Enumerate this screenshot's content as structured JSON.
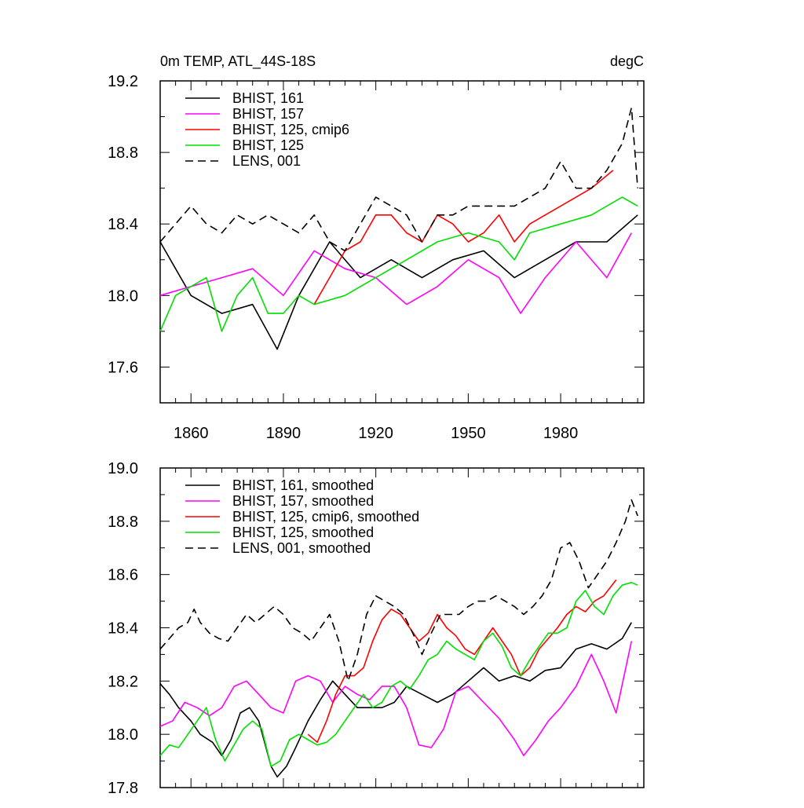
{
  "colors": {
    "BHIST_161": "#000000",
    "BHIST_157": "#ff00ff",
    "BHIST_125_cmip6": "#ff0000",
    "BHIST_125": "#00e000",
    "LENS_001": "#000000"
  },
  "chart_data": [
    {
      "type": "line",
      "title": "0m TEMP, ATL_44S-18S",
      "units_label": "degC",
      "xlim": [
        1850,
        2007
      ],
      "ylim": [
        17.4,
        19.2
      ],
      "x_ticks": [
        1860,
        1890,
        1920,
        1950,
        1980
      ],
      "x_tick_labels": [
        "1860",
        "1890",
        "1920",
        "1950",
        "1980"
      ],
      "y_ticks": [
        17.6,
        18.0,
        18.4,
        18.8,
        19.2
      ],
      "y_tick_labels": [
        "17.6",
        "18.0",
        "18.4",
        "18.8",
        "19.2"
      ],
      "legend_position": "top-left",
      "grid": false,
      "series": [
        {
          "name": "BHIST, 161",
          "color": "#000000",
          "dash": "solid",
          "x": [
            1850,
            1860,
            1870,
            1880,
            1888,
            1895,
            1905,
            1915,
            1925,
            1935,
            1945,
            1955,
            1965,
            1975,
            1985,
            1995,
            2005
          ],
          "y": [
            18.3,
            18.0,
            17.9,
            17.95,
            17.7,
            18.0,
            18.3,
            18.1,
            18.2,
            18.1,
            18.2,
            18.25,
            18.1,
            18.2,
            18.3,
            18.3,
            18.45
          ]
        },
        {
          "name": "BHIST, 157",
          "color": "#ff00ff",
          "dash": "solid",
          "x": [
            1850,
            1860,
            1870,
            1880,
            1890,
            1900,
            1910,
            1920,
            1930,
            1940,
            1950,
            1960,
            1967,
            1975,
            1985,
            1995,
            2003
          ],
          "y": [
            18.0,
            18.05,
            18.1,
            18.15,
            18.0,
            18.25,
            18.15,
            18.1,
            17.95,
            18.05,
            18.2,
            18.1,
            17.9,
            18.1,
            18.3,
            18.1,
            18.35
          ]
        },
        {
          "name": "BHIST, 125, cmip6",
          "color": "#ff0000",
          "dash": "solid",
          "x": [
            1900,
            1905,
            1910,
            1915,
            1920,
            1925,
            1930,
            1935,
            1940,
            1945,
            1950,
            1955,
            1960,
            1965,
            1970,
            1975,
            1980,
            1985,
            1990,
            1997
          ],
          "y": [
            17.95,
            18.1,
            18.25,
            18.3,
            18.45,
            18.45,
            18.35,
            18.3,
            18.45,
            18.4,
            18.3,
            18.35,
            18.45,
            18.3,
            18.4,
            18.45,
            18.5,
            18.55,
            18.6,
            18.7
          ]
        },
        {
          "name": "BHIST, 125",
          "color": "#00e000",
          "dash": "solid",
          "x": [
            1850,
            1855,
            1860,
            1865,
            1870,
            1875,
            1880,
            1885,
            1890,
            1895,
            1900,
            1910,
            1920,
            1930,
            1940,
            1950,
            1960,
            1965,
            1970,
            1980,
            1990,
            2000,
            2005
          ],
          "y": [
            17.8,
            18.0,
            18.05,
            18.1,
            17.8,
            18.0,
            18.1,
            17.9,
            17.9,
            18.0,
            17.95,
            18.0,
            18.1,
            18.2,
            18.3,
            18.35,
            18.3,
            18.2,
            18.35,
            18.4,
            18.45,
            18.55,
            18.5
          ]
        },
        {
          "name": "LENS, 001",
          "color": "#000000",
          "dash": "dashed",
          "x": [
            1850,
            1855,
            1860,
            1865,
            1870,
            1875,
            1880,
            1885,
            1890,
            1895,
            1900,
            1905,
            1910,
            1915,
            1920,
            1925,
            1930,
            1935,
            1940,
            1945,
            1950,
            1955,
            1960,
            1965,
            1970,
            1975,
            1980,
            1985,
            1990,
            1995,
            2000,
            2003,
            2005
          ],
          "y": [
            18.3,
            18.4,
            18.5,
            18.4,
            18.35,
            18.45,
            18.4,
            18.45,
            18.4,
            18.35,
            18.45,
            18.3,
            18.25,
            18.4,
            18.55,
            18.5,
            18.45,
            18.3,
            18.45,
            18.45,
            18.5,
            18.5,
            18.5,
            18.5,
            18.55,
            18.6,
            18.75,
            18.6,
            18.6,
            18.7,
            18.85,
            19.05,
            18.6
          ]
        }
      ]
    },
    {
      "type": "line",
      "title": "",
      "xlim": [
        1850,
        2007
      ],
      "ylim": [
        17.8,
        19.0
      ],
      "x_ticks": [
        1860,
        1890,
        1920,
        1950,
        1980
      ],
      "x_tick_labels": [],
      "y_ticks": [
        17.8,
        18.0,
        18.2,
        18.4,
        18.6,
        18.8,
        19.0
      ],
      "y_tick_labels": [
        "17.8",
        "18.0",
        "18.2",
        "18.4",
        "18.6",
        "18.8",
        "19.0"
      ],
      "legend_position": "top-left",
      "grid": false,
      "series": [
        {
          "name": "BHIST, 161, smoothed",
          "color": "#000000",
          "dash": "solid",
          "x": [
            1850,
            1853,
            1856,
            1860,
            1863,
            1867,
            1870,
            1873,
            1876,
            1879,
            1882,
            1886,
            1888,
            1891,
            1894,
            1898,
            1902,
            1906,
            1910,
            1914,
            1918,
            1922,
            1926,
            1930,
            1935,
            1940,
            1945,
            1950,
            1955,
            1960,
            1965,
            1970,
            1975,
            1980,
            1985,
            1990,
            1995,
            2000,
            2003
          ],
          "y": [
            18.19,
            18.15,
            18.1,
            18.05,
            18.0,
            17.97,
            17.92,
            17.98,
            18.08,
            18.1,
            18.05,
            17.88,
            17.84,
            17.88,
            17.95,
            18.05,
            18.13,
            18.2,
            18.15,
            18.1,
            18.1,
            18.1,
            18.12,
            18.18,
            18.15,
            18.12,
            18.15,
            18.2,
            18.25,
            18.2,
            18.22,
            18.2,
            18.24,
            18.25,
            18.32,
            18.34,
            18.32,
            18.36,
            18.42
          ]
        },
        {
          "name": "BHIST, 157, smoothed",
          "color": "#ff00ff",
          "dash": "solid",
          "x": [
            1850,
            1854,
            1858,
            1862,
            1866,
            1870,
            1874,
            1878,
            1882,
            1886,
            1890,
            1894,
            1898,
            1902,
            1906,
            1910,
            1914,
            1918,
            1922,
            1926,
            1930,
            1934,
            1938,
            1942,
            1946,
            1950,
            1955,
            1960,
            1965,
            1968,
            1972,
            1976,
            1980,
            1985,
            1990,
            1994,
            1998,
            2003
          ],
          "y": [
            18.03,
            18.05,
            18.12,
            18.1,
            18.07,
            18.1,
            18.18,
            18.2,
            18.15,
            18.1,
            18.08,
            18.2,
            18.22,
            18.2,
            18.12,
            18.18,
            18.15,
            18.13,
            18.18,
            18.18,
            18.1,
            17.96,
            17.95,
            18.02,
            18.16,
            18.18,
            18.12,
            18.06,
            17.98,
            17.92,
            17.98,
            18.05,
            18.1,
            18.18,
            18.3,
            18.2,
            18.08,
            18.35
          ]
        },
        {
          "name": "BHIST, 125, cmip6, smoothed",
          "color": "#ff0000",
          "dash": "solid",
          "x": [
            1898,
            1901,
            1904,
            1907,
            1910,
            1913,
            1916,
            1919,
            1922,
            1925,
            1928,
            1931,
            1934,
            1937,
            1940,
            1943,
            1946,
            1949,
            1952,
            1955,
            1958,
            1961,
            1964,
            1967,
            1970,
            1973,
            1976,
            1979,
            1982,
            1985,
            1988,
            1991,
            1994,
            1998
          ],
          "y": [
            18.0,
            17.97,
            18.05,
            18.15,
            18.22,
            18.22,
            18.25,
            18.35,
            18.43,
            18.47,
            18.45,
            18.4,
            18.35,
            18.38,
            18.45,
            18.4,
            18.37,
            18.32,
            18.3,
            18.35,
            18.4,
            18.35,
            18.3,
            18.22,
            18.25,
            18.32,
            18.36,
            18.4,
            18.45,
            18.48,
            18.46,
            18.5,
            18.52,
            18.58
          ]
        },
        {
          "name": "BHIST, 125, smoothed",
          "color": "#00e000",
          "dash": "solid",
          "x": [
            1850,
            1853,
            1856,
            1859,
            1862,
            1865,
            1868,
            1871,
            1874,
            1877,
            1880,
            1883,
            1886,
            1889,
            1892,
            1895,
            1898,
            1901,
            1904,
            1907,
            1910,
            1913,
            1916,
            1919,
            1922,
            1925,
            1928,
            1931,
            1934,
            1937,
            1940,
            1943,
            1946,
            1949,
            1952,
            1955,
            1958,
            1961,
            1964,
            1967,
            1970,
            1973,
            1976,
            1979,
            1982,
            1985,
            1988,
            1991,
            1994,
            1997,
            2000,
            2003,
            2005
          ],
          "y": [
            17.92,
            17.96,
            17.95,
            18.0,
            18.05,
            18.1,
            17.98,
            17.9,
            17.96,
            18.02,
            18.05,
            18.02,
            17.88,
            17.9,
            17.98,
            18.0,
            17.98,
            17.96,
            17.97,
            18.0,
            18.05,
            18.1,
            18.15,
            18.1,
            18.12,
            18.18,
            18.2,
            18.17,
            18.22,
            18.28,
            18.3,
            18.35,
            18.32,
            18.3,
            18.28,
            18.35,
            18.38,
            18.33,
            18.25,
            18.22,
            18.28,
            18.33,
            18.38,
            18.38,
            18.4,
            18.5,
            18.54,
            18.48,
            18.45,
            18.52,
            18.56,
            18.57,
            18.56
          ]
        },
        {
          "name": "LENS, 001, smoothed",
          "color": "#000000",
          "dash": "dashed",
          "x": [
            1850,
            1853,
            1856,
            1859,
            1861,
            1863,
            1866,
            1869,
            1872,
            1875,
            1878,
            1881,
            1884,
            1887,
            1890,
            1893,
            1896,
            1899,
            1902,
            1905,
            1908,
            1911,
            1914,
            1917,
            1920,
            1923,
            1926,
            1929,
            1932,
            1935,
            1938,
            1941,
            1944,
            1947,
            1950,
            1953,
            1956,
            1959,
            1962,
            1965,
            1968,
            1971,
            1974,
            1977,
            1980,
            1983,
            1986,
            1989,
            1992,
            1995,
            1998,
            2001,
            2003,
            2005
          ],
          "y": [
            18.32,
            18.36,
            18.4,
            18.42,
            18.47,
            18.42,
            18.38,
            18.36,
            18.35,
            18.4,
            18.45,
            18.42,
            18.45,
            18.48,
            18.45,
            18.4,
            18.38,
            18.35,
            18.4,
            18.45,
            18.35,
            18.2,
            18.3,
            18.45,
            18.52,
            18.5,
            18.48,
            18.45,
            18.38,
            18.3,
            18.38,
            18.45,
            18.45,
            18.45,
            18.48,
            18.5,
            18.5,
            18.52,
            18.5,
            18.48,
            18.45,
            18.48,
            18.52,
            18.58,
            18.7,
            18.72,
            18.65,
            18.55,
            18.6,
            18.65,
            18.72,
            18.8,
            18.88,
            18.82
          ]
        }
      ]
    }
  ]
}
